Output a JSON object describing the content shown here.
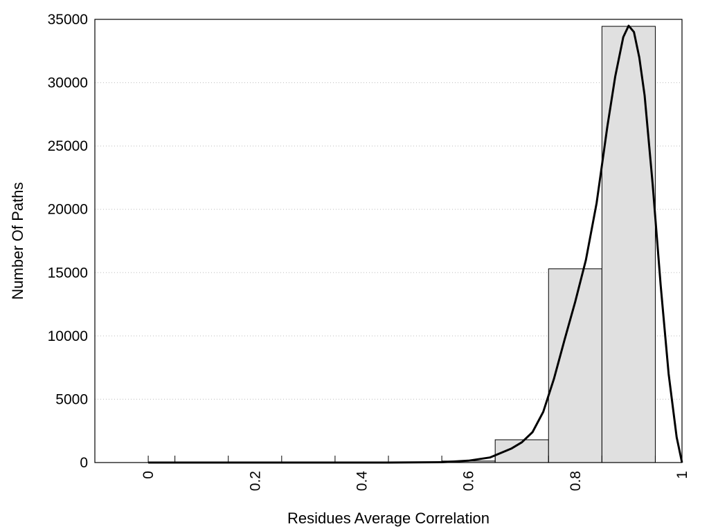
{
  "chart_data": {
    "type": "bar",
    "xlabel": "Residues Average Correlation",
    "ylabel": "Number Of Paths",
    "xlim": [
      -0.1,
      1.0
    ],
    "ylim": [
      0,
      35000
    ],
    "grid": true,
    "x_ticks": [
      {
        "value": 0,
        "label": "0"
      },
      {
        "value": 0.2,
        "label": "0.2"
      },
      {
        "value": 0.4,
        "label": "0.4"
      },
      {
        "value": 0.6,
        "label": "0.6"
      },
      {
        "value": 0.8,
        "label": "0.8"
      },
      {
        "value": 1.0,
        "label": "1"
      }
    ],
    "y_ticks": [
      {
        "value": 0,
        "label": "0"
      },
      {
        "value": 5000,
        "label": "5000"
      },
      {
        "value": 10000,
        "label": "10000"
      },
      {
        "value": 15000,
        "label": "15000"
      },
      {
        "value": 20000,
        "label": "20000"
      },
      {
        "value": 25000,
        "label": "25000"
      },
      {
        "value": 30000,
        "label": "30000"
      },
      {
        "value": 35000,
        "label": "35000"
      }
    ],
    "bins": [
      {
        "x0": 0.0,
        "x1": 0.05,
        "value": 0
      },
      {
        "x0": 0.05,
        "x1": 0.15,
        "value": 0
      },
      {
        "x0": 0.15,
        "x1": 0.25,
        "value": 0
      },
      {
        "x0": 0.25,
        "x1": 0.35,
        "value": 0
      },
      {
        "x0": 0.35,
        "x1": 0.45,
        "value": 0
      },
      {
        "x0": 0.45,
        "x1": 0.55,
        "value": 5
      },
      {
        "x0": 0.55,
        "x1": 0.65,
        "value": 120
      },
      {
        "x0": 0.65,
        "x1": 0.75,
        "value": 1800
      },
      {
        "x0": 0.75,
        "x1": 0.85,
        "value": 15300
      },
      {
        "x0": 0.85,
        "x1": 0.95,
        "value": 34450
      }
    ],
    "fit_curve": [
      {
        "x": 0.0,
        "y": 0
      },
      {
        "x": 0.45,
        "y": 0
      },
      {
        "x": 0.55,
        "y": 30
      },
      {
        "x": 0.6,
        "y": 150
      },
      {
        "x": 0.64,
        "y": 400
      },
      {
        "x": 0.68,
        "y": 1100
      },
      {
        "x": 0.7,
        "y": 1600
      },
      {
        "x": 0.72,
        "y": 2400
      },
      {
        "x": 0.74,
        "y": 4000
      },
      {
        "x": 0.76,
        "y": 6600
      },
      {
        "x": 0.78,
        "y": 9700
      },
      {
        "x": 0.8,
        "y": 12700
      },
      {
        "x": 0.82,
        "y": 16000
      },
      {
        "x": 0.84,
        "y": 20500
      },
      {
        "x": 0.86,
        "y": 26500
      },
      {
        "x": 0.875,
        "y": 30500
      },
      {
        "x": 0.89,
        "y": 33600
      },
      {
        "x": 0.9,
        "y": 34500
      },
      {
        "x": 0.91,
        "y": 34000
      },
      {
        "x": 0.92,
        "y": 32000
      },
      {
        "x": 0.93,
        "y": 29000
      },
      {
        "x": 0.945,
        "y": 22000
      },
      {
        "x": 0.96,
        "y": 14000
      },
      {
        "x": 0.975,
        "y": 7000
      },
      {
        "x": 0.99,
        "y": 2000
      },
      {
        "x": 1.0,
        "y": 0
      }
    ],
    "colors": {
      "bar_fill": "#e0e0e0",
      "bar_stroke": "#000000",
      "curve": "#000000",
      "grid": "#bbbbbb"
    }
  }
}
